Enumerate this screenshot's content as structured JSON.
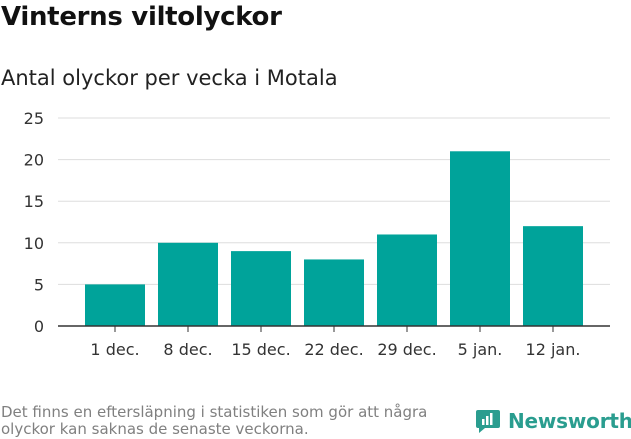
{
  "header": {
    "title": "Vinterns viltolyckor",
    "subtitle": "Antal olyckor per vecka i Motala"
  },
  "chart_data": {
    "type": "bar",
    "title": "Vinterns viltolyckor",
    "subtitle": "Antal olyckor per vecka i Motala",
    "categories": [
      "1 dec.",
      "8 dec.",
      "15 dec.",
      "22 dec.",
      "29 dec.",
      "5 jan.",
      "12 jan."
    ],
    "values": [
      5,
      10,
      9,
      8,
      11,
      21,
      12
    ],
    "ylim": [
      0,
      25
    ],
    "yticks": [
      0,
      5,
      10,
      15,
      20,
      25
    ],
    "grid": true,
    "bar_color": "#00a39a",
    "xlabel": "",
    "ylabel": ""
  },
  "footer": {
    "note": "Det finns en eftersläpning i statistiken som gör att några olyckor kan saknas de senaste veckorna.",
    "brand": "Newsworthy",
    "brand_color": "#2a9d8f",
    "brand_icon": "newsworthy-logo-icon"
  }
}
